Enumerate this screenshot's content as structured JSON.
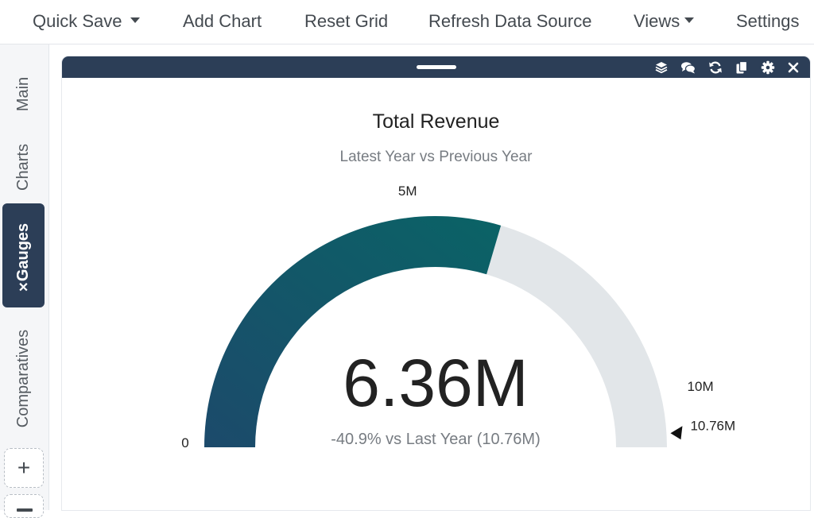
{
  "menu": {
    "quick_save": "Quick Save",
    "add_chart": "Add Chart",
    "reset_grid": "Reset Grid",
    "refresh_data_source": "Refresh Data Source",
    "views": "Views",
    "settings": "Settings"
  },
  "sidebar": {
    "tabs": [
      {
        "label": "Main"
      },
      {
        "label": "Charts"
      },
      {
        "label": "Gauges",
        "active": true
      },
      {
        "label": "Comparatives"
      }
    ],
    "close_glyph": "✕",
    "add_glyph": "+"
  },
  "widget": {
    "header_icons": [
      "layers-icon",
      "comments-icon",
      "refresh-icon",
      "copy-icon",
      "gear-icon",
      "close-icon"
    ],
    "colors": {
      "header": "#2c3e57",
      "gauge_fill_start": "#1c4a6b",
      "gauge_fill_end": "#0a6366",
      "gauge_track": "#e2e6e9"
    }
  },
  "chart_data": {
    "type": "gauge",
    "title": "Total Revenue",
    "subtitle": "Latest Year vs Previous Year",
    "value": 6.36,
    "value_label": "6.36M",
    "min": 0,
    "max": 10.76,
    "min_label": "0",
    "mid_label": "5M",
    "max_tick_label": "10M",
    "mid_tick_value": 5,
    "max_tick_value": 10,
    "target": 10.76,
    "target_label": "10.76M",
    "comparison_text": "-40.9% vs Last Year (10.76M)"
  }
}
